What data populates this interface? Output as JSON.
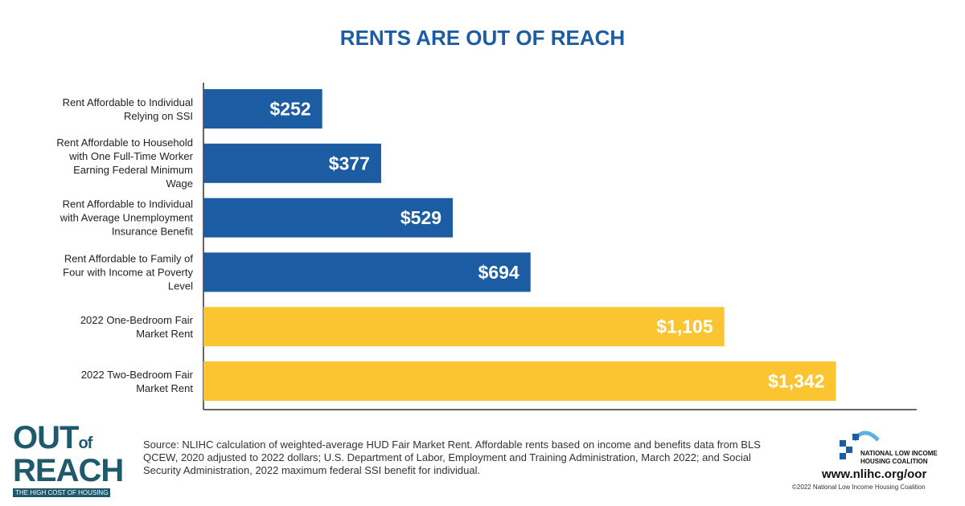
{
  "chart_data": {
    "type": "hbar",
    "title": "RENTS ARE OUT OF REACH",
    "categories": [
      "Rent Affordable to Individual Relying on SSI",
      "Rent Affordable to Household with One Full-Time Worker Earning Federal Minimum Wage",
      "Rent Affordable to Individual with Average Unemployment Insurance Benefit",
      "Rent Affordable to Family of Four with Income at Poverty Level",
      "2022 One-Bedroom Fair Market Rent",
      "2022 Two-Bedroom Fair Market Rent"
    ],
    "values": [
      252,
      377,
      529,
      694,
      1105,
      1342
    ],
    "value_labels": [
      "$252",
      "$377",
      "$529",
      "$694",
      "$1,105",
      "$1,342"
    ],
    "colors": [
      "#1b5ca3",
      "#1b5ca3",
      "#1b5ca3",
      "#1b5ca3",
      "#fbc531",
      "#fbc531"
    ],
    "xlim": [
      0,
      1510
    ]
  },
  "footer": {
    "logo_out": "OUT",
    "logo_of": "of",
    "logo_reach": "REACH",
    "logo_tagline": "THE HIGH COST OF HOUSING",
    "source": "Source: NLIHC calculation of weighted-average HUD Fair Market Rent. Affordable rents based on income and benefits data from BLS QCEW, 2020 adjusted to 2022 dollars; U.S. Department of Labor, Employment and Training Administration, March 2022; and Social Security Administration, 2022 maximum federal SSI benefit for individual.",
    "org": "NATIONAL LOW INCOME HOUSING COALITION",
    "url": "www.nlihc.org/oor",
    "copyright": "©2022 National Low Income Housing Coalition"
  }
}
